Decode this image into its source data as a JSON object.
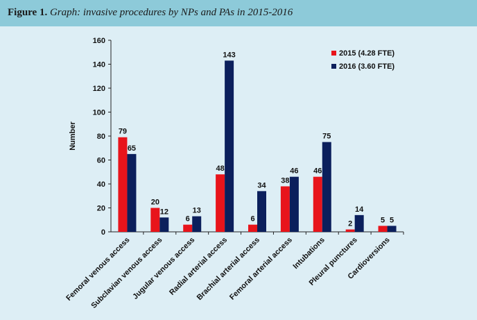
{
  "header": {
    "figure_label": "Figure 1.",
    "caption": "Graph: invasive procedures by NPs and PAs in 2015-2016"
  },
  "chart_data": {
    "type": "bar",
    "title": "",
    "xlabel": "",
    "ylabel": "Number",
    "ylim": [
      0,
      160
    ],
    "yticks": [
      0,
      20,
      40,
      60,
      80,
      100,
      120,
      140,
      160
    ],
    "grid": false,
    "legend_position": "top-right",
    "categories": [
      "Femoral venous access",
      "Subclavian venous access",
      "Jugular venous access",
      "Radial arterial access",
      "Brachial arterial access",
      "Femoral arterial access",
      "Intubations",
      "Pleural punctures",
      "Cardioversions"
    ],
    "series": [
      {
        "name": "2015 (4.28 FTE)",
        "color": "#e8141b",
        "values": [
          79,
          20,
          6,
          48,
          6,
          38,
          46,
          2,
          5
        ]
      },
      {
        "name": "2016 (3.60 FTE)",
        "color": "#0b1f5c",
        "values": [
          65,
          12,
          13,
          143,
          34,
          46,
          75,
          14,
          5
        ]
      }
    ]
  }
}
